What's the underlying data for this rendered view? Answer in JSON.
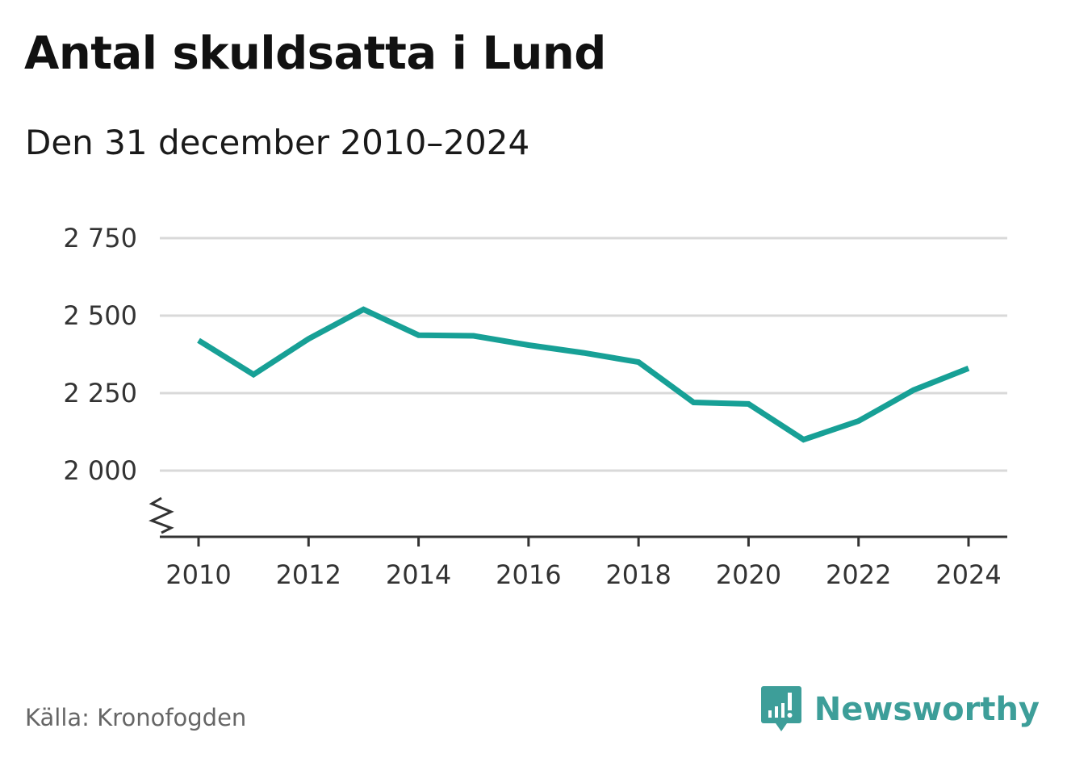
{
  "title": "Antal skuldsatta i Lund",
  "subtitle": "Den 31 december 2010–2024",
  "source": "Källa: Kronofogden",
  "brand": {
    "name": "Newsworthy",
    "logo_icon": "chart-speech-bubble-icon",
    "color": "#3d9e99"
  },
  "chart_data": {
    "type": "line",
    "x": [
      2010,
      2011,
      2012,
      2013,
      2014,
      2015,
      2016,
      2017,
      2018,
      2019,
      2020,
      2021,
      2022,
      2023,
      2024
    ],
    "series": [
      {
        "values": [
          2420,
          2310,
          2425,
          2520,
          2437,
          2435,
          2405,
          2380,
          2350,
          2220,
          2215,
          2100,
          2160,
          2260,
          2330
        ],
        "color": "#17a096"
      }
    ],
    "x_ticks": [
      2010,
      2012,
      2014,
      2016,
      2018,
      2020,
      2022,
      2024
    ],
    "x_tick_labels": [
      "2010",
      "2012",
      "2014",
      "2016",
      "2018",
      "2020",
      "2022",
      "2024"
    ],
    "y_ticks": [
      2000,
      2250,
      2500,
      2750
    ],
    "y_tick_labels": [
      "2 000",
      "2 250",
      "2 500",
      "2 750"
    ],
    "xlim": [
      2010,
      2024
    ],
    "ylim": [
      2000,
      2750
    ],
    "y_axis_break": true,
    "grid": true,
    "grid_color": "#d9d9d9",
    "xlabel": "",
    "ylabel": ""
  }
}
